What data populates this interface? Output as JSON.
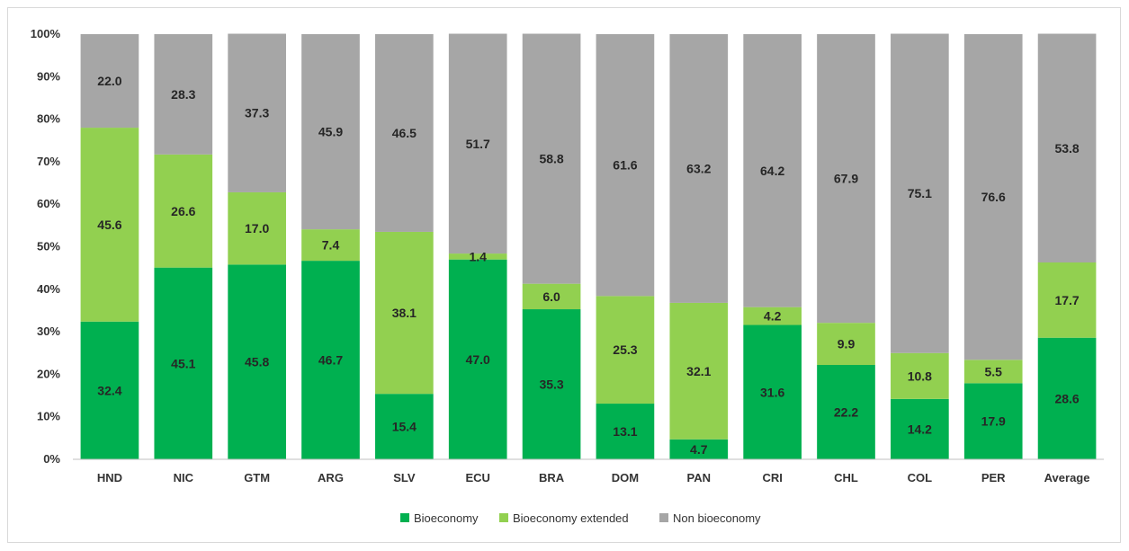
{
  "chart_data": {
    "type": "bar",
    "stacked": true,
    "categories": [
      "HND",
      "NIC",
      "GTM",
      "ARG",
      "SLV",
      "ECU",
      "BRA",
      "DOM",
      "PAN",
      "CRI",
      "CHL",
      "COL",
      "PER",
      "Average"
    ],
    "series": [
      {
        "name": "Bioeconomy",
        "color": "#00b050",
        "values": [
          32.4,
          45.1,
          45.8,
          46.7,
          15.4,
          47.0,
          35.3,
          13.1,
          4.7,
          31.6,
          22.2,
          14.2,
          17.9,
          28.6
        ],
        "labels": [
          "32.4",
          "45.1",
          "45.8",
          "46.7",
          "15.4",
          "47.0",
          "35.3",
          "13.1",
          "4.7",
          "31.6",
          "22.2",
          "14.2",
          "17.9",
          "28.6"
        ]
      },
      {
        "name": "Bioeconomy extended",
        "color": "#92d050",
        "values": [
          45.6,
          26.6,
          17.0,
          7.4,
          38.1,
          1.4,
          6.0,
          25.3,
          32.1,
          4.2,
          9.9,
          10.8,
          5.5,
          17.7
        ],
        "labels": [
          "45.6",
          "26.6",
          "17.0",
          "7.4",
          "38.1",
          "1.4",
          "6.0",
          "25.3",
          "32.1",
          "4.2",
          "9.9",
          "10.8",
          "5.5",
          "17.7"
        ]
      },
      {
        "name": "Non bioeconomy",
        "color": "#a6a6a6",
        "values": [
          22.0,
          28.3,
          37.3,
          45.9,
          46.5,
          51.7,
          58.8,
          61.6,
          63.2,
          64.2,
          67.9,
          75.1,
          76.6,
          53.8
        ],
        "labels": [
          "22.0",
          "28.3",
          "37.3",
          "45.9",
          "46.5",
          "51.7",
          "58.8",
          "61.6",
          "63.2",
          "64.2",
          "67.9",
          "75.1",
          "76.6",
          "53.8"
        ]
      }
    ],
    "yticks": [
      "0%",
      "10%",
      "20%",
      "30%",
      "40%",
      "50%",
      "60%",
      "70%",
      "80%",
      "90%",
      "100%"
    ],
    "ylim": [
      0,
      100
    ],
    "grid": false,
    "legend_position": "bottom"
  }
}
